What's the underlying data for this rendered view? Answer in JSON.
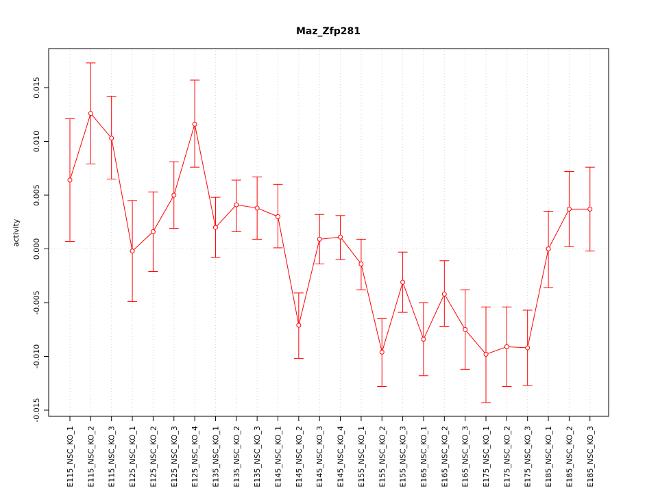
{
  "chart_data": {
    "type": "line",
    "title": "Maz_Zfp281",
    "xlabel": "",
    "ylabel": "activity",
    "ylim": [
      -0.0155,
      0.0185
    ],
    "y_ticks": [
      -0.015,
      -0.01,
      -0.005,
      0.0,
      0.005,
      0.01,
      0.015
    ],
    "y_tick_labels": [
      "-0.015",
      "-0.010",
      "-0.005",
      "0.000",
      "0.005",
      "0.010",
      "0.015"
    ],
    "grid": true,
    "series_color": "#ff0000",
    "categories": [
      "E115_NSC_KO_1",
      "E115_NSC_KO_2",
      "E115_NSC_KO_3",
      "E125_NSC_KO_1",
      "E125_NSC_KO_2",
      "E125_NSC_KO_3",
      "E125_NSC_KO_4",
      "E135_NSC_KO_1",
      "E135_NSC_KO_2",
      "E135_NSC_KO_3",
      "E145_NSC_KO_1",
      "E145_NSC_KO_2",
      "E145_NSC_KO_3",
      "E145_NSC_KO_4",
      "E155_NSC_KO_1",
      "E155_NSC_KO_2",
      "E155_NSC_KO_3",
      "E165_NSC_KO_1",
      "E165_NSC_KO_2",
      "E165_NSC_KO_3",
      "E175_NSC_KO_1",
      "E175_NSC_KO_2",
      "E175_NSC_KO_3",
      "E185_NSC_KO_1",
      "E185_NSC_KO_2",
      "E185_NSC_KO_3"
    ],
    "values": [
      0.0064,
      0.0126,
      0.0103,
      -0.0002,
      0.0016,
      0.005,
      0.0116,
      0.002,
      0.0041,
      0.0038,
      0.003,
      -0.0071,
      0.0009,
      0.0011,
      -0.0014,
      -0.0096,
      -0.0031,
      -0.0084,
      -0.0042,
      -0.0075,
      -0.0098,
      -0.0091,
      -0.0092,
      0.0,
      0.0037,
      0.0037
    ],
    "upper": [
      0.0121,
      0.0173,
      0.0142,
      0.0045,
      0.0053,
      0.0081,
      0.0157,
      0.0048,
      0.0064,
      0.0067,
      0.006,
      -0.0041,
      0.0032,
      0.0031,
      0.0009,
      -0.0065,
      -0.0003,
      -0.005,
      -0.0011,
      -0.0038,
      -0.0054,
      -0.0054,
      -0.0057,
      0.0035,
      0.0072,
      0.0076
    ],
    "lower": [
      0.0007,
      0.0079,
      0.0065,
      -0.0049,
      -0.0021,
      0.0019,
      0.0076,
      -0.0008,
      0.0016,
      0.0009,
      0.0001,
      -0.0102,
      -0.0014,
      -0.001,
      -0.0038,
      -0.0128,
      -0.0059,
      -0.0118,
      -0.0072,
      -0.0112,
      -0.0143,
      -0.0128,
      -0.0127,
      -0.0036,
      0.0002,
      -0.0002
    ]
  }
}
